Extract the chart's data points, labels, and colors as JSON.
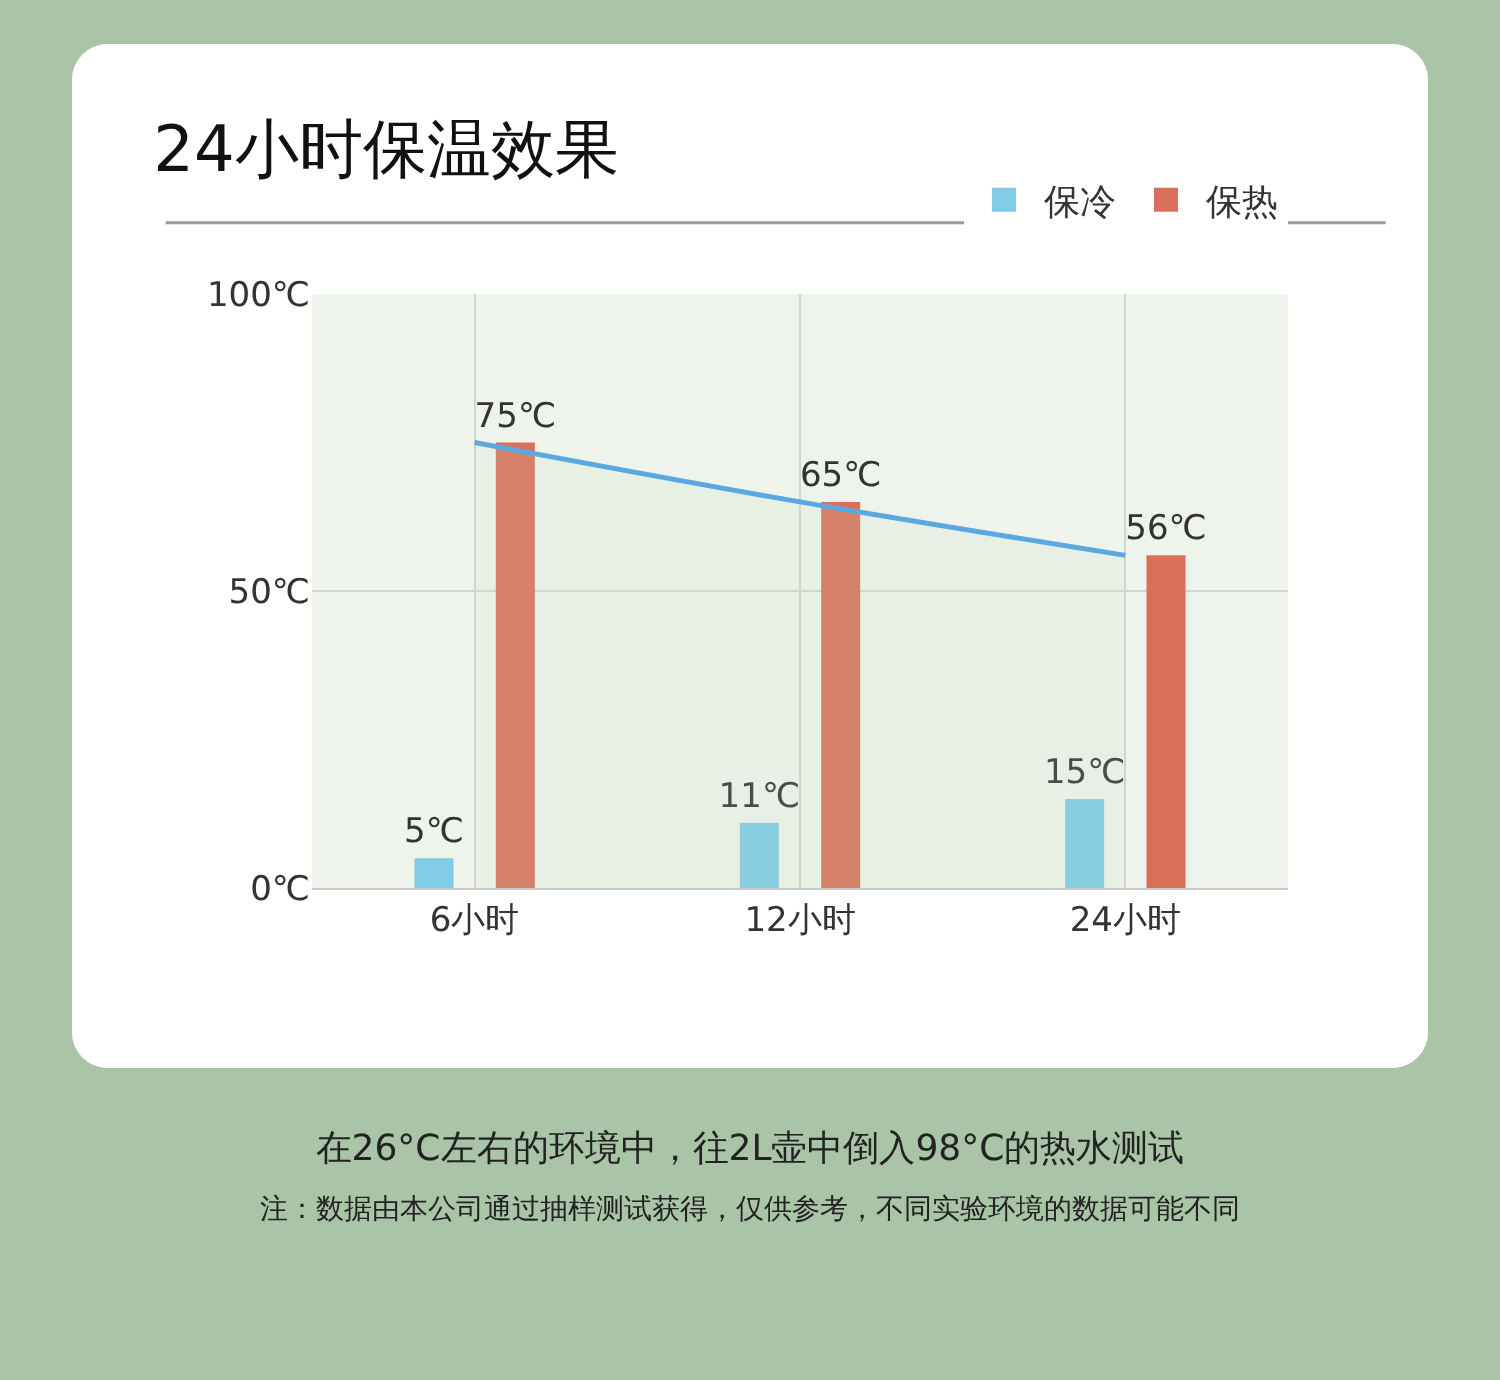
{
  "chart_data": {
    "type": "bar",
    "title": "24小时保温效果",
    "categories": [
      "6小时",
      "12小时",
      "24小时"
    ],
    "series": [
      {
        "type": "area",
        "color": "#5aa8e0",
        "values": [
          75,
          65,
          56
        ]
      },
      {
        "name": "保冷",
        "color": "#7fcbe8",
        "values": [
          5,
          11,
          15
        ],
        "value_labels": [
          "5℃",
          "11℃",
          "15℃"
        ]
      },
      {
        "name": "保热",
        "color": "#d9705a",
        "values": [
          75,
          65,
          56
        ],
        "value_labels": [
          "75℃",
          "65℃",
          "56℃"
        ]
      }
    ],
    "ylim": [
      0,
      100
    ],
    "yticks": [
      {
        "value": 0,
        "label": "0℃"
      },
      {
        "value": 50,
        "label": "50℃"
      },
      {
        "value": 100,
        "label": "100℃"
      }
    ],
    "grid": true,
    "legend": "top right",
    "annotations": [
      "在26°C左右的环境中，往2L壶中倒入98°C的热水测试",
      "注：数据由本公司通过抽样测试获得，仅供参考，不同实验环境的数据可能不同"
    ]
  }
}
